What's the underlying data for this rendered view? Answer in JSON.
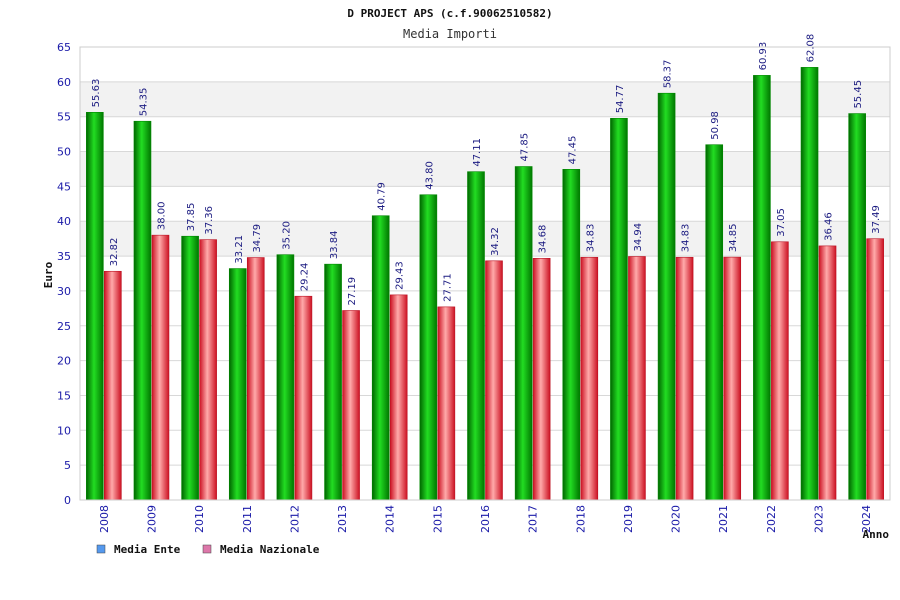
{
  "chart_data": {
    "type": "bar",
    "title": "D PROJECT APS (c.f.90062510582)",
    "subtitle": "Media Importi",
    "ylabel": "Euro",
    "xlabel": "Anno",
    "ylim": [
      0,
      65
    ],
    "ytick_step": 5,
    "y_ticks": [
      "0",
      "5",
      "10",
      "15",
      "20",
      "25",
      "30",
      "35",
      "40",
      "45",
      "50",
      "55",
      "60",
      "65"
    ],
    "grid": true,
    "legend_position": "bottom-left",
    "categories": [
      "2008",
      "2009",
      "2010",
      "2011",
      "2012",
      "2013",
      "2014",
      "2015",
      "2016",
      "2017",
      "2018",
      "2019",
      "2020",
      "2021",
      "2022",
      "2023",
      "2024"
    ],
    "series": [
      {
        "name": "Media Ente",
        "color": "#00aa00",
        "legend_color": "#5599ee",
        "values": [
          55.63,
          54.35,
          37.85,
          33.21,
          35.2,
          33.84,
          40.79,
          43.8,
          47.11,
          47.85,
          47.45,
          54.77,
          58.37,
          50.98,
          60.93,
          62.08,
          55.45
        ],
        "labels": [
          "55.63",
          "54.35",
          "37.85",
          "33.21",
          "35.20",
          "33.84",
          "40.79",
          "43.80",
          "47.11",
          "47.85",
          "47.45",
          "54.77",
          "58.37",
          "50.98",
          "60.93",
          "62.08",
          "55.45"
        ]
      },
      {
        "name": "Media Nazionale",
        "color": "#dd2233",
        "legend_color": "#dd77aa",
        "values": [
          32.82,
          38.0,
          37.36,
          34.79,
          29.24,
          27.19,
          29.43,
          27.71,
          34.32,
          34.68,
          34.83,
          34.94,
          34.83,
          34.85,
          37.05,
          36.46,
          37.49
        ],
        "labels": [
          "32.82",
          "38.00",
          "37.36",
          "34.79",
          "29.24",
          "27.19",
          "29.43",
          "27.71",
          "34.32",
          "34.68",
          "34.83",
          "34.94",
          "34.83",
          "34.85",
          "37.05",
          "36.46",
          "37.49"
        ]
      }
    ]
  },
  "colors": {
    "axis_text": "#1a1aa8",
    "value_label": "#1a1a80",
    "band": "#f2f2f2",
    "grid": "#d8d8d8"
  }
}
